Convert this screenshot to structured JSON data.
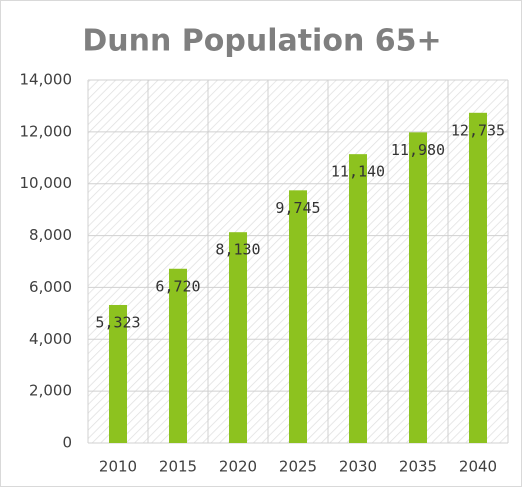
{
  "chart_data": {
    "type": "bar",
    "title": "Dunn Population 65+",
    "categories": [
      "2010",
      "2015",
      "2020",
      "2025",
      "2030",
      "2035",
      "2040"
    ],
    "values": [
      5323,
      6720,
      8130,
      9745,
      11140,
      11980,
      12735
    ],
    "value_labels": [
      "5,323",
      "6,720",
      "8,130",
      "9,745",
      "11,140",
      "11,980",
      "12,735"
    ],
    "color": "#8dc21f",
    "ylim": [
      0,
      14000
    ],
    "yticks": [
      0,
      {
        "value": 2000,
        "label": "2,000"
      },
      {
        "value": 4000,
        "label": "4,000"
      },
      {
        "value": 6000,
        "label": "6,000"
      },
      {
        "value": 8000,
        "label": "8,000"
      },
      {
        "value": 10000,
        "label": "10,000"
      },
      {
        "value": 12000,
        "label": "12,000"
      },
      {
        "value": 14000,
        "label": "14,000"
      }
    ],
    "grid": true
  }
}
